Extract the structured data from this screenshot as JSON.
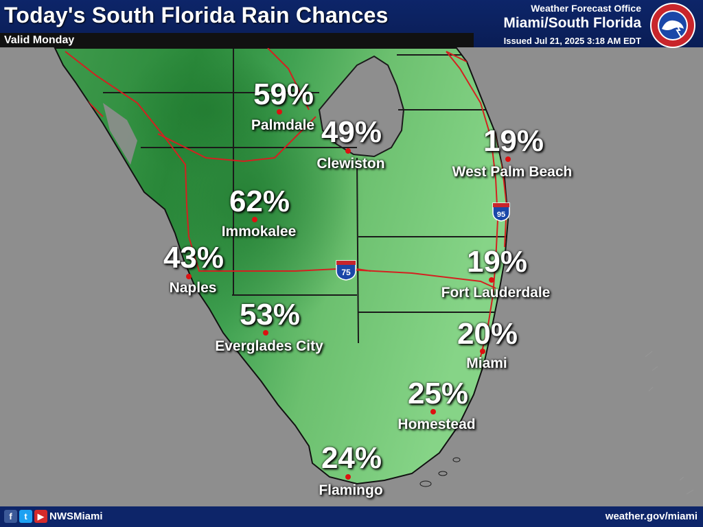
{
  "header": {
    "title": "Today's South Florida Rain Chances",
    "valid": "Valid Monday",
    "office_line1": "Weather Forecast Office",
    "office_line2": "Miami/South Florida",
    "issued": "Issued Jul 21, 2025 3:18 AM EDT",
    "logo_text": "NATIONAL WEATHER SERVICE"
  },
  "highways": {
    "i95": "95",
    "i75": "75"
  },
  "locations": [
    {
      "name": "Palmdale",
      "chance": "59%"
    },
    {
      "name": "Clewiston",
      "chance": "49%"
    },
    {
      "name": "West Palm Beach",
      "chance": "19%"
    },
    {
      "name": "Immokalee",
      "chance": "62%"
    },
    {
      "name": "Naples",
      "chance": "43%"
    },
    {
      "name": "Fort Lauderdale",
      "chance": "19%"
    },
    {
      "name": "Everglades City",
      "chance": "53%"
    },
    {
      "name": "Miami",
      "chance": "20%"
    },
    {
      "name": "Homestead",
      "chance": "25%"
    },
    {
      "name": "Flamingo",
      "chance": "24%"
    }
  ],
  "footer": {
    "handle": "NWSMiami",
    "website": "weather.gov/miami",
    "facebook_glyph": "f",
    "twitter_glyph": "t",
    "youtube_glyph": "▶"
  },
  "colors": {
    "header_bg": "#0d2569",
    "ocean": "#8e8e8e",
    "land_dark": "#2c8a3c",
    "land_light": "#7fd080",
    "road": "#d42020",
    "dot": "#d11111"
  }
}
